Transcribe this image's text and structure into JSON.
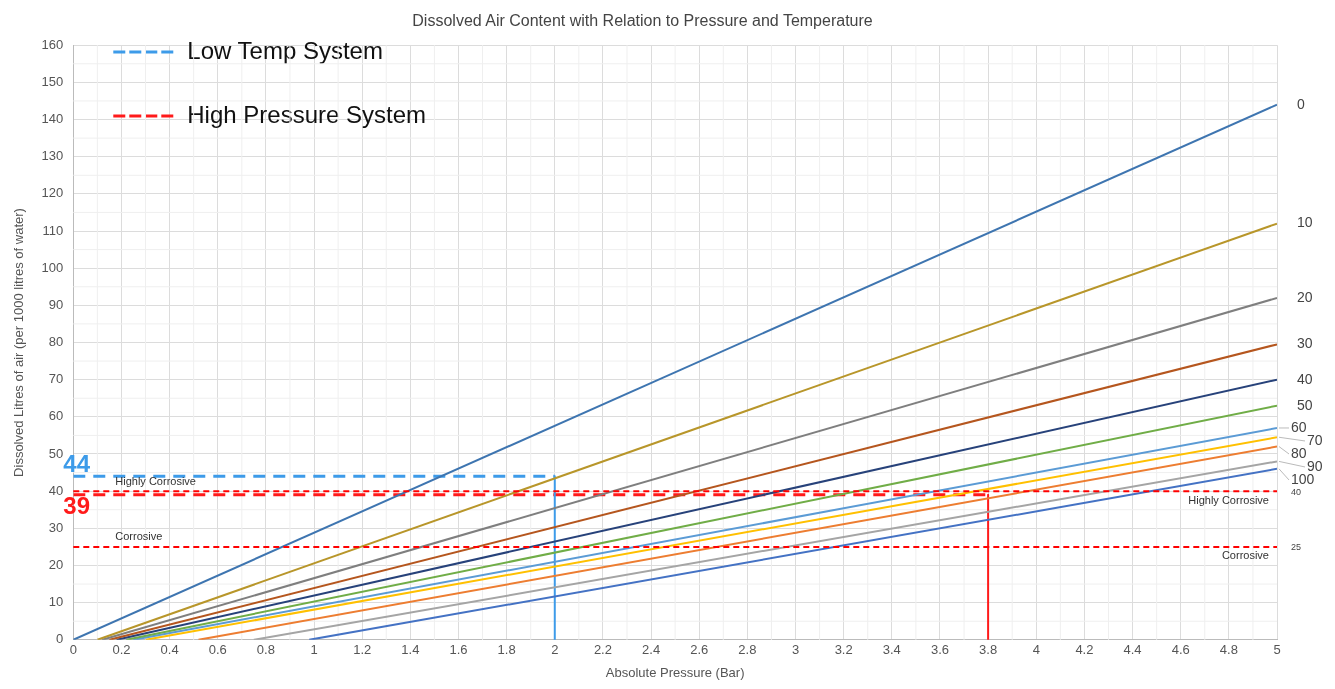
{
  "chart_data": {
    "type": "line",
    "title": "Dissolved Air Content with Relation to Pressure and Temperature",
    "xlabel": "Absolute Pressure (Bar)",
    "ylabel": "Dissolved Litres of air (per 1000 litres of water)",
    "xlim": [
      0,
      5
    ],
    "xticks": [
      0,
      0.2,
      0.4,
      0.6,
      0.8,
      1,
      1.2,
      1.4,
      1.6,
      1.8,
      2,
      2.2,
      2.4,
      2.6,
      2.8,
      3,
      3.2,
      3.4,
      3.6,
      3.8,
      4,
      4.2,
      4.4,
      4.6,
      4.8,
      5
    ],
    "ylim": [
      0,
      160
    ],
    "yticks": [
      0,
      10,
      20,
      30,
      40,
      50,
      60,
      70,
      80,
      90,
      100,
      110,
      120,
      130,
      140,
      150,
      160
    ],
    "grid": true,
    "legend": "top left",
    "marker": "none",
    "series": [
      {
        "name": "0",
        "color": "#3e75b0",
        "x": [
          0,
          5
        ],
        "values": [
          0,
          144
        ]
      },
      {
        "name": "10",
        "color": "#b8962a",
        "x": [
          0.1,
          5
        ],
        "values": [
          0,
          112
        ]
      },
      {
        "name": "20",
        "color": "#7f7f7f",
        "x": [
          0.12,
          5
        ],
        "values": [
          0,
          92
        ]
      },
      {
        "name": "30",
        "color": "#b5561e",
        "x": [
          0.15,
          5
        ],
        "values": [
          0,
          79.5
        ]
      },
      {
        "name": "40",
        "color": "#27427a",
        "x": [
          0.18,
          5
        ],
        "values": [
          0,
          70
        ]
      },
      {
        "name": "50",
        "color": "#70ad47",
        "x": [
          0.22,
          5
        ],
        "values": [
          0,
          63
        ]
      },
      {
        "name": "60",
        "color": "#5b9bd5",
        "x": [
          0.25,
          5
        ],
        "values": [
          0,
          57
        ]
      },
      {
        "name": "70",
        "color": "#ffc000",
        "x": [
          0.3,
          5
        ],
        "values": [
          0,
          54.5
        ]
      },
      {
        "name": "80",
        "color": "#ed7d31",
        "x": [
          0.52,
          5
        ],
        "values": [
          0,
          52
        ]
      },
      {
        "name": "90",
        "color": "#a5a5a5",
        "x": [
          0.75,
          5
        ],
        "values": [
          0,
          48
        ]
      },
      {
        "name": "100",
        "color": "#4472c4",
        "x": [
          0.98,
          5
        ],
        "values": [
          0,
          46
        ]
      },
      {
        "name": "Low Temp System",
        "color": "#3d9be9",
        "x": [
          0,
          2
        ],
        "values": [
          44,
          44
        ],
        "line_style": "dashed"
      },
      {
        "color": "#3d9be9",
        "x": [
          2,
          2
        ],
        "values": [
          44,
          0
        ]
      },
      {
        "name": "High Pressure System",
        "color": "#ff1a1a",
        "x": [
          0,
          3.8
        ],
        "values": [
          39,
          39
        ],
        "line_style": "dashed"
      },
      {
        "color": "#ff1a1a",
        "x": [
          3.8,
          3.8
        ],
        "values": [
          39,
          0
        ]
      }
    ],
    "ref_lines": [
      {
        "axis": "y",
        "value": 40,
        "label": "Highly Corrosive",
        "color": "#ff0000",
        "line_style": "dashed"
      },
      {
        "axis": "y",
        "value": 25,
        "label": "Corrosive",
        "color": "#ff0000",
        "line_style": "dashed"
      }
    ],
    "annotations": [
      {
        "text": "44",
        "x": 0,
        "y": 44
      },
      {
        "text": "39",
        "x": 0,
        "y": 39
      },
      "40",
      "25"
    ]
  }
}
